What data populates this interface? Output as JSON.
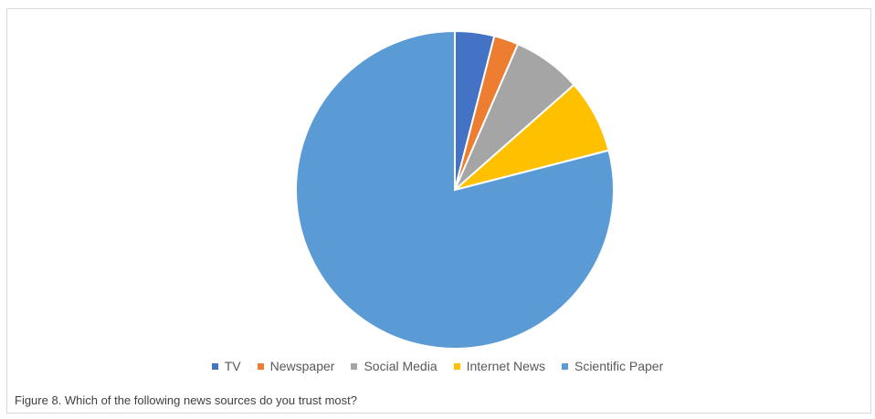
{
  "chart_data": {
    "type": "pie",
    "title": "",
    "categories": [
      "TV",
      "Newspaper",
      "Social Media",
      "Internet News",
      "Scientific Paper"
    ],
    "values": [
      4,
      2.5,
      7,
      7.5,
      79
    ],
    "colors": [
      "#4472c4",
      "#ed7d31",
      "#a5a5a5",
      "#ffc000",
      "#5b9bd5"
    ],
    "legend_position": "bottom",
    "start_angle": "top",
    "direction": "clockwise"
  },
  "caption": "Figure 8. Which of the following news sources do you trust most?"
}
